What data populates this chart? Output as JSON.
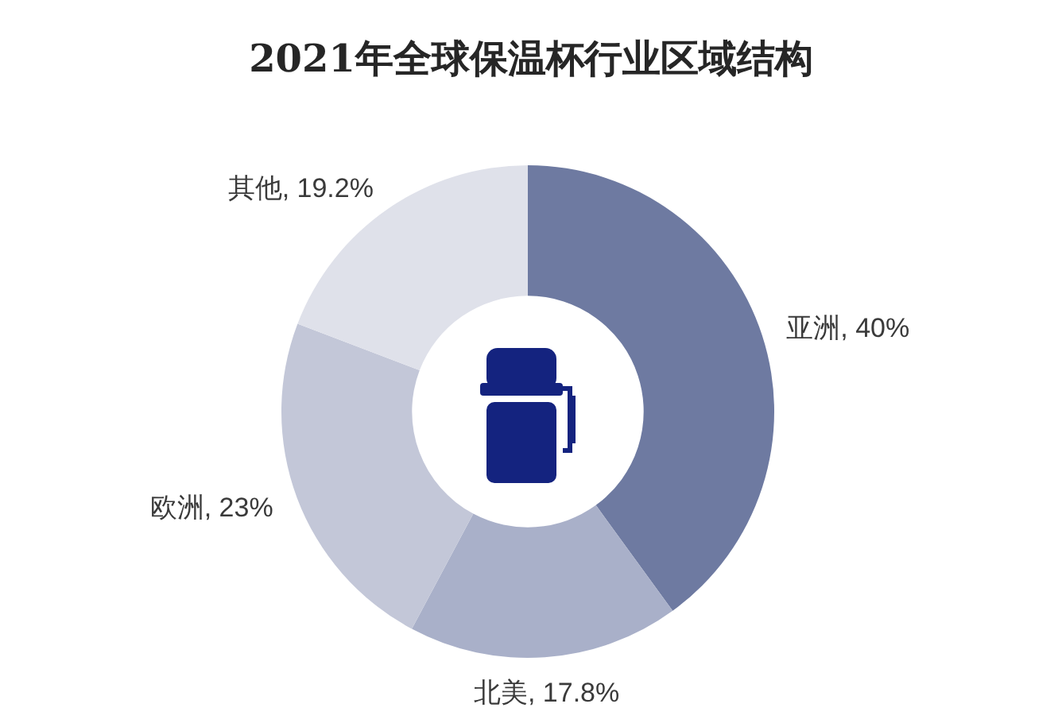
{
  "chart_data": {
    "type": "donut",
    "title": "2021年全球保温杯行业区域结构",
    "categories": [
      "亚洲",
      "北美",
      "欧洲",
      "其他"
    ],
    "values": [
      40,
      17.8,
      23,
      19.2
    ],
    "colors": [
      "#6e7aa1",
      "#a9b0c9",
      "#c3c7d8",
      "#dfe1ea"
    ],
    "value_labels": [
      "40%",
      "17.8%",
      "23%",
      "19.2%"
    ]
  }
}
